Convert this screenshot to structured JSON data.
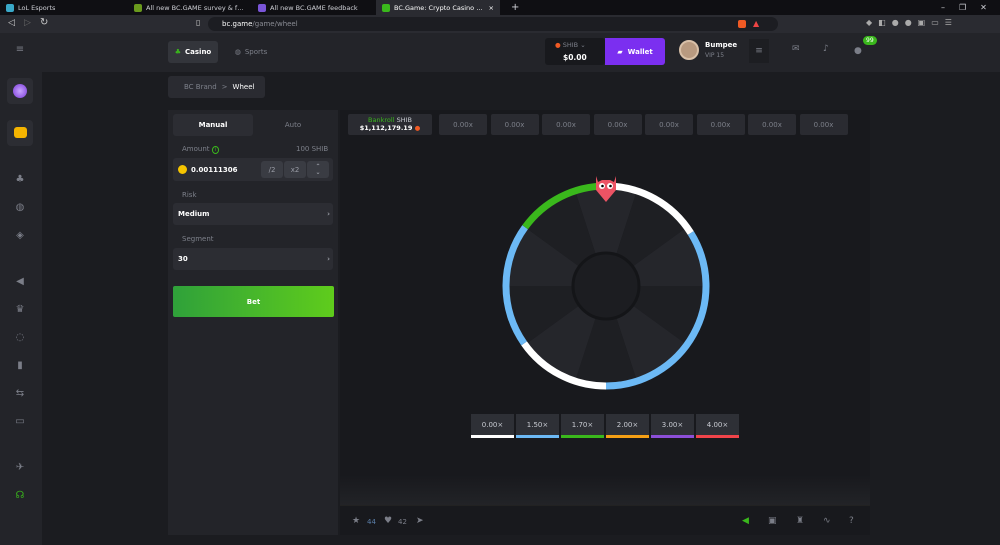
{
  "browser": {
    "tabs": [
      {
        "title": "LoL Esports",
        "active": false
      },
      {
        "title": "All new BC.GAME survey & feedback r",
        "active": false
      },
      {
        "title": "All new BC.GAME feedback",
        "active": false
      },
      {
        "title": "BC.Game: Crypto Casino Games &",
        "active": true
      }
    ],
    "new_tab": "+",
    "url_host": "bc.game",
    "url_path": "/game/wheel"
  },
  "header": {
    "casino": "Casino",
    "sports": "Sports",
    "currency": "SHIB",
    "balance": "$0.00",
    "wallet": "Wallet",
    "username": "Bumpee",
    "vip": "VIP 15",
    "chat_badge": "99"
  },
  "breadcrumb": {
    "parent": "BC Brand",
    "sep": ">",
    "current": "Wheel"
  },
  "controls": {
    "tab_manual": "Manual",
    "tab_auto": "Auto",
    "amount_label": "Amount",
    "amount_info": "i",
    "amount_value_label": "100 SHIB",
    "amount": "0.00111306",
    "half": "/2",
    "double": "x2",
    "risk_label": "Risk",
    "risk": "Medium",
    "segment_label": "Segment",
    "segment": "30",
    "bet": "Bet"
  },
  "bankroll": {
    "label": "Bankroll",
    "currency": "SHIB",
    "value": "$1,112,179.19"
  },
  "history": [
    "0.00x",
    "0.00x",
    "0.00x",
    "0.00x",
    "0.00x",
    "0.00x",
    "0.00x",
    "0.00x"
  ],
  "multipliers": [
    {
      "label": "0.00×",
      "color": "#ffffff"
    },
    {
      "label": "1.50×",
      "color": "#6cb9f5"
    },
    {
      "label": "1.70×",
      "color": "#3ab81c"
    },
    {
      "label": "2.00×",
      "color": "#f5a015"
    },
    {
      "label": "3.00×",
      "color": "#8c4fd8"
    },
    {
      "label": "4.00×",
      "color": "#f0444a"
    }
  ],
  "wheel_ring": [
    {
      "from": 0,
      "to": 58,
      "color": "#ffffff"
    },
    {
      "from": 58,
      "to": 180,
      "color": "#6cb9f5"
    },
    {
      "from": 180,
      "to": 235,
      "color": "#ffffff"
    },
    {
      "from": 235,
      "to": 306,
      "color": "#6cb9f5"
    },
    {
      "from": 306,
      "to": 360,
      "color": "#3ab81c"
    }
  ],
  "footer": {
    "stars": "44",
    "likes": "42"
  },
  "colors": {
    "accent": "#3ab81c",
    "wallet": "#7b2ff0"
  }
}
